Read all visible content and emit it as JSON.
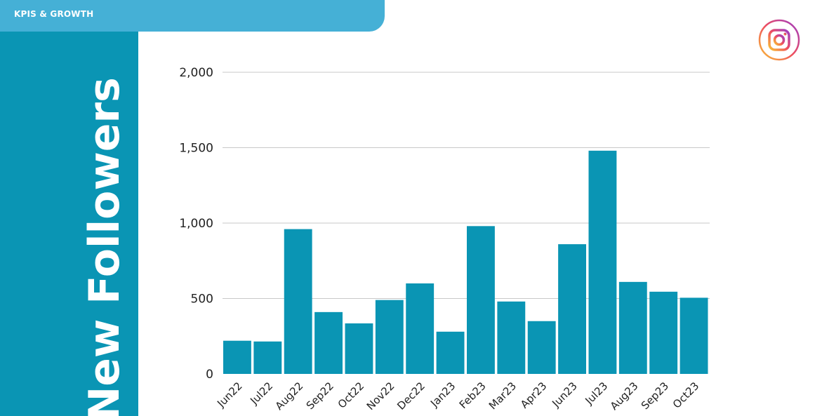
{
  "header": {
    "tab_label": "KPIS & GROWTH"
  },
  "sidebar": {
    "title": "New Followers"
  },
  "brand": {
    "icon": "instagram-icon",
    "accent": "#0a95b4",
    "tab_color": "#45b0d6"
  },
  "chart_data": {
    "type": "bar",
    "categories": [
      "Jun22",
      "Jul22",
      "Aug22",
      "Sep22",
      "Oct22",
      "Nov22",
      "Dec22",
      "Jan23",
      "Feb23",
      "Mar23",
      "Apr23",
      "Jun23",
      "Jul23",
      "Aug23",
      "Sep23",
      "Oct23"
    ],
    "values": [
      220,
      215,
      960,
      410,
      335,
      490,
      600,
      280,
      980,
      480,
      350,
      860,
      1480,
      610,
      545,
      505
    ],
    "yticks": [
      "0",
      "500",
      "1,000",
      "1,500",
      "2,000"
    ],
    "ylim": [
      0,
      2000
    ],
    "grid": true,
    "bar_color": "#0a95b4",
    "xlabel": "",
    "ylabel": "",
    "title": ""
  }
}
